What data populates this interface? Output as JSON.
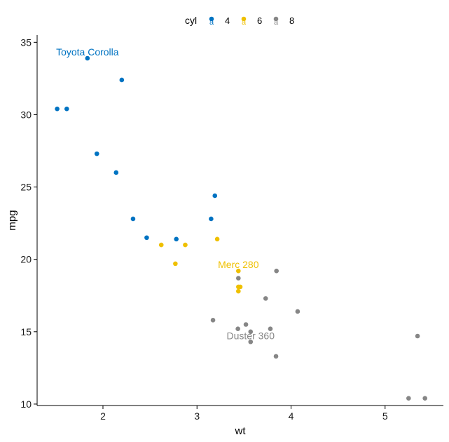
{
  "chart_data": {
    "type": "scatter",
    "xlabel": "wt",
    "ylabel": "mpg",
    "xlim": [
      1.3,
      5.62
    ],
    "ylim": [
      9.9,
      35.5
    ],
    "xticks": [
      2,
      3,
      4,
      5
    ],
    "yticks": [
      10,
      15,
      20,
      25,
      30,
      35
    ],
    "grid": false,
    "legend": {
      "title": "cyl",
      "position": "top",
      "key_glyph": "a",
      "entries": [
        "4",
        "6",
        "8"
      ]
    },
    "colors": {
      "4": "#0073C2",
      "6": "#EFC000",
      "8": "#868686"
    },
    "series": [
      {
        "name": "4",
        "points": [
          [
            2.32,
            22.8
          ],
          [
            3.19,
            24.4
          ],
          [
            3.15,
            22.8
          ],
          [
            2.2,
            32.4
          ],
          [
            1.615,
            30.4
          ],
          [
            1.835,
            33.9
          ],
          [
            2.465,
            21.5
          ],
          [
            1.935,
            27.3
          ],
          [
            2.14,
            26.0
          ],
          [
            1.513,
            30.4
          ],
          [
            2.78,
            21.4
          ]
        ]
      },
      {
        "name": "6",
        "points": [
          [
            2.62,
            21.0
          ],
          [
            2.875,
            21.0
          ],
          [
            3.215,
            21.4
          ],
          [
            3.44,
            18.1
          ],
          [
            3.44,
            19.2
          ],
          [
            3.44,
            17.8
          ],
          [
            2.77,
            19.7
          ],
          [
            3.46,
            18.1
          ]
        ]
      },
      {
        "name": "8",
        "points": [
          [
            3.44,
            18.7
          ],
          [
            3.57,
            14.3
          ],
          [
            4.07,
            16.4
          ],
          [
            3.73,
            17.3
          ],
          [
            3.78,
            15.2
          ],
          [
            5.25,
            10.4
          ],
          [
            5.424,
            10.4
          ],
          [
            5.345,
            14.7
          ],
          [
            3.52,
            15.5
          ],
          [
            3.435,
            15.2
          ],
          [
            3.84,
            13.3
          ],
          [
            3.845,
            19.2
          ],
          [
            3.17,
            15.8
          ],
          [
            3.57,
            15.0
          ]
        ]
      }
    ],
    "annotations": [
      {
        "text": "Toyota Corolla",
        "x": 1.835,
        "y": 33.9,
        "series": "4"
      },
      {
        "text": "Merc 280",
        "x": 3.44,
        "y": 19.2,
        "series": "6"
      },
      {
        "text": "Duster 360",
        "x": 3.57,
        "y": 14.3,
        "series": "8"
      }
    ]
  }
}
